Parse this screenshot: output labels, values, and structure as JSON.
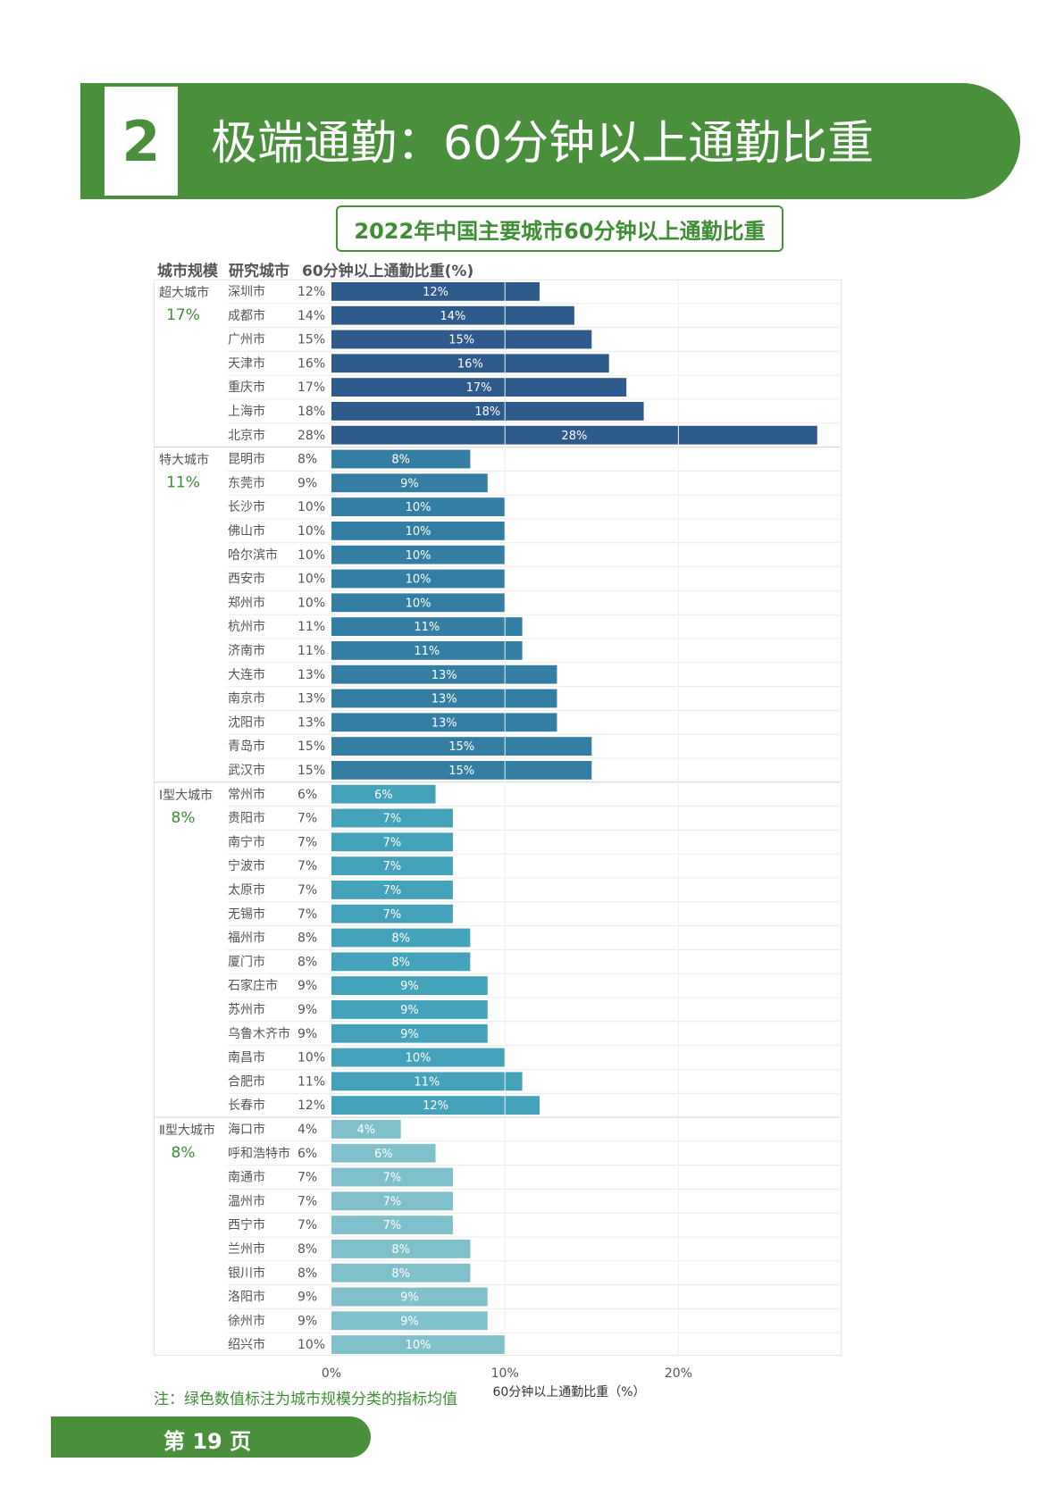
{
  "header": {
    "number": "2",
    "title": "极端通勤：60分钟以上通勤比重"
  },
  "subtitle": "2022年中国主要城市60分钟以上通勤比重",
  "table_headers": {
    "scale": "城市规模",
    "city": "研究城市",
    "value": "60分钟以上通勤比重(%)"
  },
  "note": "注：绿色数值标注为城市规模分类的指标均值",
  "footer": {
    "page": "第 19 页"
  },
  "colors": {
    "green": "#4a8f3c",
    "super": "#2e5b8c",
    "mega": "#347ea3",
    "typeI": "#45a2bb",
    "typeII": "#7fc0cb",
    "avg": "#3f8d35"
  },
  "chart_data": {
    "type": "bar",
    "orientation": "horizontal",
    "title": "2022年中国主要城市60分钟以上通勤比重",
    "xlabel": "60分钟以上通勤比重（%）",
    "xlim": [
      0,
      30
    ],
    "xticks": [
      "0%",
      "10%",
      "20%"
    ],
    "groups": [
      {
        "name": "超大城市",
        "avg": "17%",
        "color": "#2e5b8c",
        "cities": [
          "深圳市",
          "成都市",
          "广州市",
          "天津市",
          "重庆市",
          "上海市",
          "北京市"
        ],
        "values": [
          12,
          14,
          15,
          16,
          17,
          18,
          28
        ]
      },
      {
        "name": "特大城市",
        "avg": "11%",
        "color": "#347ea3",
        "cities": [
          "昆明市",
          "东莞市",
          "长沙市",
          "佛山市",
          "哈尔滨市",
          "西安市",
          "郑州市",
          "杭州市",
          "济南市",
          "大连市",
          "南京市",
          "沈阳市",
          "青岛市",
          "武汉市"
        ],
        "values": [
          8,
          9,
          10,
          10,
          10,
          10,
          10,
          11,
          11,
          13,
          13,
          13,
          15,
          15
        ]
      },
      {
        "name": "Ⅰ型大城市",
        "avg": "8%",
        "color": "#45a2bb",
        "cities": [
          "常州市",
          "贵阳市",
          "南宁市",
          "宁波市",
          "太原市",
          "无锡市",
          "福州市",
          "厦门市",
          "石家庄市",
          "苏州市",
          "乌鲁木齐市",
          "南昌市",
          "合肥市",
          "长春市"
        ],
        "values": [
          6,
          7,
          7,
          7,
          7,
          7,
          8,
          8,
          9,
          9,
          9,
          10,
          11,
          12
        ]
      },
      {
        "name": "Ⅱ型大城市",
        "avg": "8%",
        "color": "#7fc0cb",
        "cities": [
          "海口市",
          "呼和浩特市",
          "南通市",
          "温州市",
          "西宁市",
          "兰州市",
          "银川市",
          "洛阳市",
          "徐州市",
          "绍兴市"
        ],
        "values": [
          4,
          6,
          7,
          7,
          7,
          8,
          8,
          9,
          9,
          10
        ]
      }
    ]
  }
}
